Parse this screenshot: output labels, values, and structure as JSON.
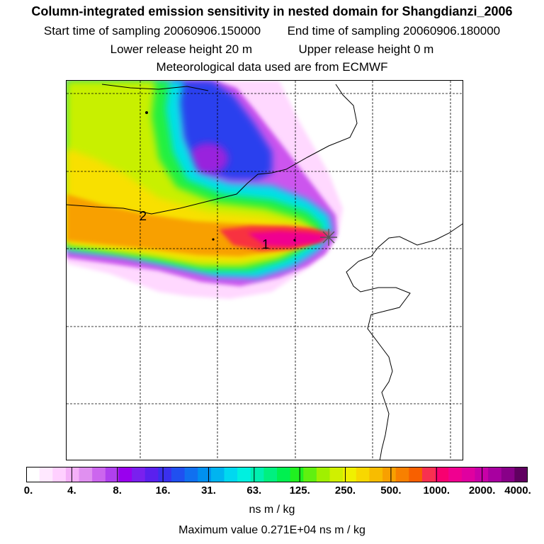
{
  "header": {
    "title": "Column-integrated emission sensitivity in nested domain for Shangdianzi_2006",
    "start_label": "Start time of sampling 20060906.150000",
    "end_label": "End time of sampling 20060906.180000",
    "lower_label": "Lower release height   20 m",
    "upper_label": "Upper release height    0 m",
    "met_label": "Meteorological data used are from ECMWF"
  },
  "map": {
    "contour_labels": [
      "2",
      "1"
    ],
    "release_site_marker": "cross-star-icon"
  },
  "colorbar": {
    "colors": [
      "#ffffff",
      "#ffe8ff",
      "#ffd0ff",
      "#f4b0f8",
      "#e090f0",
      "#cc66ee",
      "#b040ee",
      "#9900ee",
      "#7a20ee",
      "#5a20ee",
      "#3a30ee",
      "#2050f0",
      "#1070f0",
      "#0090f0",
      "#00b4f0",
      "#00d8f0",
      "#00f0e0",
      "#00f0b0",
      "#00f080",
      "#00f050",
      "#20f020",
      "#60f010",
      "#a0f000",
      "#d0f000",
      "#f0f000",
      "#f8d800",
      "#f8bc00",
      "#f8a000",
      "#f88000",
      "#f86000",
      "#f83050",
      "#f80070",
      "#f00090",
      "#e000a0",
      "#c800a8",
      "#a800a0",
      "#880088",
      "#600060"
    ],
    "tick_labels": [
      "0.",
      "4.",
      "8.",
      "16.",
      "31.",
      "63.",
      "125.",
      "250.",
      "500.",
      "1000.",
      "2000.",
      "4000."
    ],
    "units": "ns m / kg"
  },
  "footer": {
    "max_value": "Maximum value  0.271E+04 ns m / kg"
  }
}
